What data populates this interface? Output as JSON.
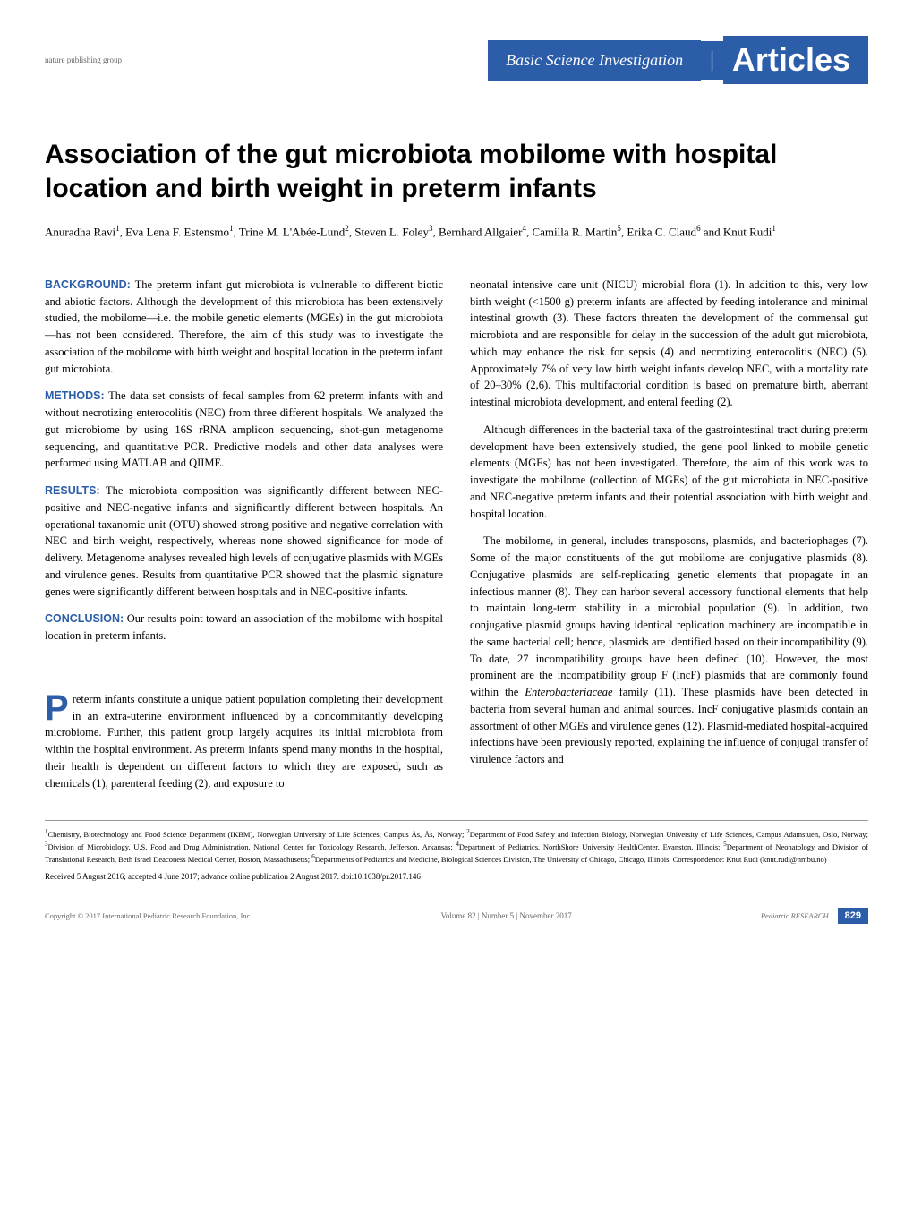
{
  "header": {
    "publishing_group": "nature publishing group",
    "section_label": "Basic Science Investigation",
    "articles_label": "Articles"
  },
  "title": "Association of the gut microbiota mobilome with hospital location and birth weight in preterm infants",
  "authors_html": "Anuradha Ravi<sup>1</sup>, Eva Lena F. Estensmo<sup>1</sup>, Trine M. L'Abée-Lund<sup>2</sup>, Steven L. Foley<sup>3</sup>, Bernhard Allgaier<sup>4</sup>, Camilla R. Martin<sup>5</sup>, Erika C. Claud<sup>6</sup> and Knut Rudi<sup>1</sup>",
  "abstract": {
    "background_label": "BACKGROUND:",
    "background_text": "The preterm infant gut microbiota is vulnerable to different biotic and abiotic factors. Although the development of this microbiota has been extensively studied, the mobilome—i.e. the mobile genetic elements (MGEs) in the gut microbiota—has not been considered. Therefore, the aim of this study was to investigate the association of the mobilome with birth weight and hospital location in the preterm infant gut microbiota.",
    "methods_label": "METHODS:",
    "methods_text": "The data set consists of fecal samples from 62 preterm infants with and without necrotizing enterocolitis (NEC) from three different hospitals. We analyzed the gut microbiome by using 16S rRNA amplicon sequencing, shot-gun metagenome sequencing, and quantitative PCR. Predictive models and other data analyses were performed using MATLAB and QIIME.",
    "results_label": "RESULTS:",
    "results_text": "The microbiota composition was significantly different between NEC-positive and NEC-negative infants and significantly different between hospitals. An operational taxanomic unit (OTU) showed strong positive and negative correlation with NEC and birth weight, respectively, whereas none showed significance for mode of delivery. Metagenome analyses revealed high levels of conjugative plasmids with MGEs and virulence genes. Results from quantitative PCR showed that the plasmid signature genes were significantly different between hospitals and in NEC-positive infants.",
    "conclusion_label": "CONCLUSION:",
    "conclusion_text": "Our results point toward an association of the mobilome with hospital location in preterm infants."
  },
  "body": {
    "intro_first": "reterm infants constitute a unique patient population completing their development in an extra-uterine environment influenced by a concommitantly developing microbiome. Further, this patient group largely acquires its initial microbiota from within the hospital environment. As preterm infants spend many months in the hospital, their health is dependent on different factors to which they are exposed, such as chemicals (1), parenteral feeding (2), and exposure to",
    "col2_p1": "neonatal intensive care unit (NICU) microbial flora (1). In addition to this, very low birth weight (<1500 g) preterm infants are affected by feeding intolerance and minimal intestinal growth (3). These factors threaten the development of the commensal gut microbiota and are responsible for delay in the succession of the adult gut microbiota, which may enhance the risk for sepsis (4) and necrotizing enterocolitis (NEC) (5). Approximately 7% of very low birth weight infants develop NEC, with a mortality rate of 20–30% (2,6). This multifactorial condition is based on premature birth, aberrant intestinal microbiota development, and enteral feeding (2).",
    "col2_p2": "Although differences in the bacterial taxa of the gastrointestinal tract during preterm development have been extensively studied, the gene pool linked to mobile genetic elements (MGEs) has not been investigated. Therefore, the aim of this work was to investigate the mobilome (collection of MGEs) of the gut microbiota in NEC-positive and NEC-negative preterm infants and their potential association with birth weight and hospital location.",
    "col2_p3": "The mobilome, in general, includes transposons, plasmids, and bacteriophages (7). Some of the major constituents of the gut mobilome are conjugative plasmids (8). Conjugative plasmids are self-replicating genetic elements that propagate in an infectious manner (8). They can harbor several accessory functional elements that help to maintain long-term stability in a microbial population (9). In addition, two conjugative plasmid groups having identical replication machinery are incompatible in the same bacterial cell; hence, plasmids are identified based on their incompatibility (9). To date, 27 incompatibility groups have been defined (10). However, the most prominent are the incompatibility group F (IncF) plasmids that are commonly found within the Enterobacteriaceae family (11). These plasmids have been detected in bacteria from several human and animal sources. IncF conjugative plasmids contain an assortment of other MGEs and virulence genes (12). Plasmid-mediated hospital-acquired infections have been previously reported, explaining the influence of conjugal transfer of virulence factors and"
  },
  "affiliations_html": "<sup>1</sup>Chemistry, Biotechnology and Food Science Department (IKBM), Norwegian University of Life Sciences, Campus Ås, Ås, Norway; <sup>2</sup>Department of Food Safety and Infection Biology, Norwegian University of Life Sciences, Campus Adamstuen, Oslo, Norway; <sup>3</sup>Division of Microbiology, U.S. Food and Drug Administration, National Center for Toxicology Research, Jefferson, Arkansas; <sup>4</sup>Department of Pediatrics, NorthShore University HealthCenter, Evanston, Illinois; <sup>5</sup>Department of Neonatology and Division of Translational Research, Beth Israel Deaconess Medical Center, Boston, Massachusetts; <sup>6</sup>Departments of Pediatrics and Medicine, Biological Sciences Division, The University of Chicago, Chicago, Illinois. Correspondence: Knut Rudi (knut.rudi@nmbu.no)",
  "received": "Received 5 August 2016; accepted 4 June 2017; advance online publication 2 August 2017. doi:10.1038/pr.2017.146",
  "footer": {
    "copyright": "Copyright © 2017 International Pediatric Research Foundation, Inc.",
    "volume_info": "Volume 82 | Number 5 | November 2017",
    "journal": "Pediatric RESEARCH",
    "page": "829"
  },
  "colors": {
    "primary_blue": "#2b5da8",
    "text_black": "#000000",
    "text_gray": "#666666",
    "white": "#ffffff"
  }
}
